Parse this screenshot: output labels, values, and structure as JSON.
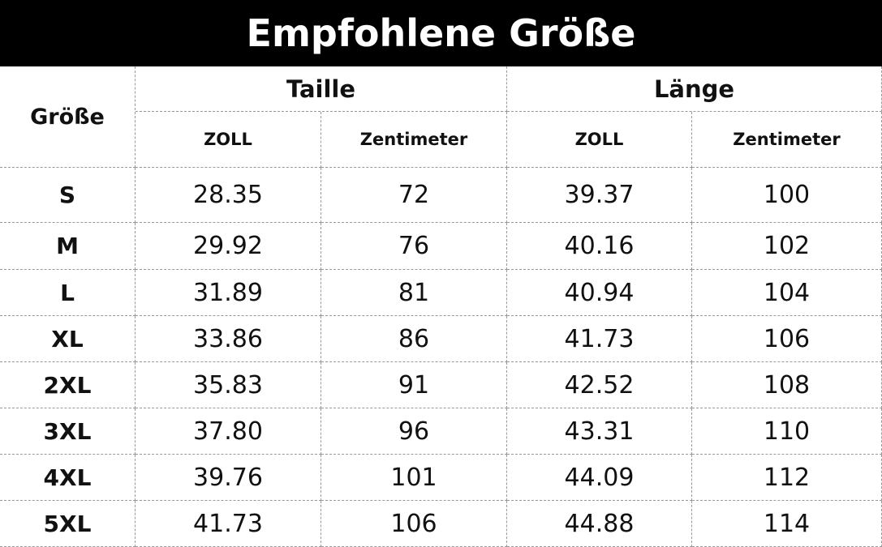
{
  "title": "Empfohlene Größe",
  "table": {
    "header": {
      "size": "Größe",
      "groups": [
        "Taille",
        "Länge"
      ],
      "units": [
        "ZOLL",
        "Zentimeter",
        "ZOLL",
        "Zentimeter"
      ]
    },
    "rows": [
      [
        "S",
        "28.35",
        "72",
        "39.37",
        "100"
      ],
      [
        "M",
        "29.92",
        "76",
        "40.16",
        "102"
      ],
      [
        "L",
        "31.89",
        "81",
        "40.94",
        "104"
      ],
      [
        "XL",
        "33.86",
        "86",
        "41.73",
        "106"
      ],
      [
        "2XL",
        "35.83",
        "91",
        "42.52",
        "108"
      ],
      [
        "3XL",
        "37.80",
        "96",
        "43.31",
        "110"
      ],
      [
        "4XL",
        "39.76",
        "101",
        "44.09",
        "112"
      ],
      [
        "5XL",
        "41.73",
        "106",
        "44.88",
        "114"
      ]
    ]
  }
}
